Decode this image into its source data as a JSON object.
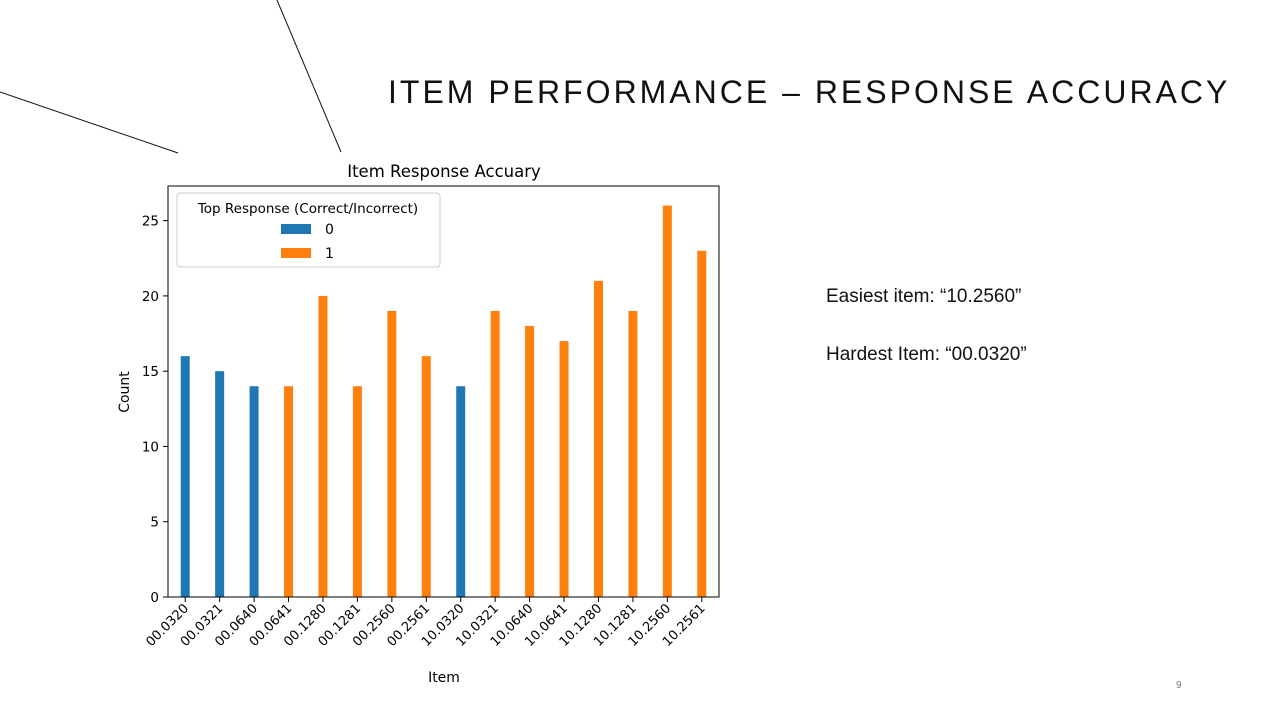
{
  "slide": {
    "title": "ITEM PERFORMANCE – RESPONSE ACCURACY",
    "notes": {
      "easiest": "Easiest item: “10.2560”",
      "hardest": "Hardest Item: “00.0320”"
    },
    "page_number": "9"
  },
  "chart_data": {
    "type": "bar",
    "title": "Item Response Accuary",
    "xlabel": "Item",
    "ylabel": "Count",
    "ylim": [
      0,
      27.3
    ],
    "yticks": [
      0,
      5,
      10,
      15,
      20,
      25
    ],
    "grid": false,
    "legend": {
      "title": "Top Response (Correct/Incorrect)",
      "position": "top-left"
    },
    "categories": [
      "00.0320",
      "00.0321",
      "00.0640",
      "00.0641",
      "00.1280",
      "00.1281",
      "00.2560",
      "00.2561",
      "10.0320",
      "10.0321",
      "10.0640",
      "10.0641",
      "10.1280",
      "10.1281",
      "10.2560",
      "10.2561"
    ],
    "series": [
      {
        "name": "0",
        "color": "#1f77b4",
        "values": [
          16,
          15,
          14,
          0,
          0,
          0,
          0,
          0,
          14,
          0,
          0,
          0,
          0,
          0,
          0,
          0
        ]
      },
      {
        "name": "1",
        "color": "#ff7f0e",
        "values": [
          0,
          0,
          0,
          14,
          20,
          14,
          19,
          16,
          0,
          19,
          18,
          17,
          21,
          19,
          26,
          23
        ]
      }
    ]
  }
}
